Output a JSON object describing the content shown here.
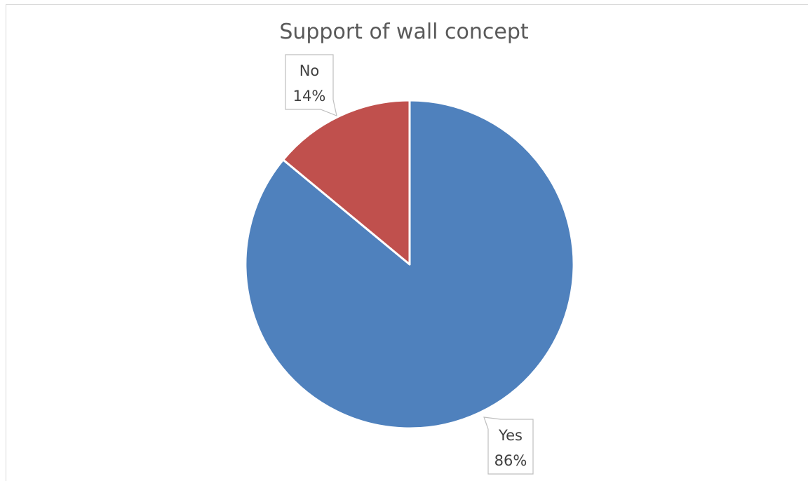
{
  "chart_data": {
    "type": "pie",
    "title": "Support of wall concept",
    "categories": [
      "Yes",
      "No"
    ],
    "values": [
      86,
      14
    ],
    "value_labels": [
      "86%",
      "14%"
    ],
    "colors": [
      "#4f81bd",
      "#c0504d"
    ],
    "start_angle_deg": 0,
    "direction": "clockwise",
    "legend": "none",
    "data_labels": "callouts"
  }
}
